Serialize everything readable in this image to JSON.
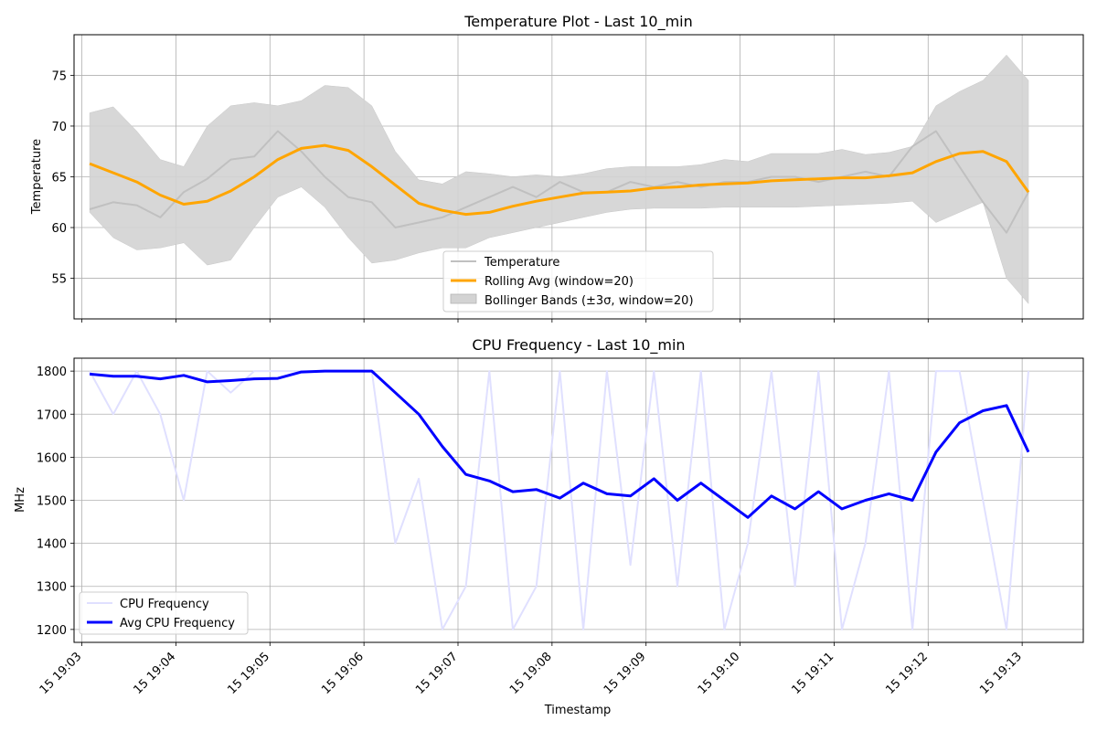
{
  "chart_data": [
    {
      "type": "line",
      "title": "Temperature Plot - Last 10_min",
      "xlabel": "",
      "ylabel": "Temperature",
      "ylim": [
        51,
        79
      ],
      "yticks": [
        55,
        60,
        65,
        70,
        75
      ],
      "grid": true,
      "legend_position": "lower center",
      "colors": {
        "temperature": "#c0c0c0",
        "rolling": "#ffa500",
        "band": "#d3d3d3"
      },
      "series": [
        {
          "name": "Temperature",
          "x": [
            "19:03:05",
            "19:03:20",
            "19:03:35",
            "19:03:50",
            "19:04:05",
            "19:04:20",
            "19:04:35",
            "19:04:50",
            "19:05:05",
            "19:05:20",
            "19:05:35",
            "19:05:50",
            "19:06:05",
            "19:06:20",
            "19:06:35",
            "19:06:50",
            "19:07:05",
            "19:07:20",
            "19:07:35",
            "19:07:50",
            "19:08:05",
            "19:08:20",
            "19:08:35",
            "19:08:50",
            "19:09:05",
            "19:09:20",
            "19:09:35",
            "19:09:50",
            "19:10:05",
            "19:10:20",
            "19:10:35",
            "19:10:50",
            "19:11:05",
            "19:11:20",
            "19:11:35",
            "19:11:50",
            "19:12:05",
            "19:12:20",
            "19:12:35",
            "19:12:50",
            "19:13:04"
          ],
          "values": [
            61.8,
            62.5,
            62.2,
            61.0,
            63.5,
            64.8,
            66.7,
            67.0,
            69.5,
            67.5,
            65.0,
            63.0,
            62.5,
            60.0,
            60.5,
            61.0,
            62.0,
            63.0,
            64.0,
            63.0,
            64.5,
            63.5,
            63.5,
            64.5,
            64.0,
            64.5,
            64.0,
            64.5,
            64.5,
            65.0,
            65.0,
            64.5,
            65.0,
            65.5,
            65.0,
            68.0,
            69.5,
            66.0,
            62.5,
            59.5,
            63.5
          ]
        },
        {
          "name": "Rolling Avg (window=20)",
          "x": [
            "19:03:05",
            "19:03:20",
            "19:03:35",
            "19:03:50",
            "19:04:05",
            "19:04:20",
            "19:04:35",
            "19:04:50",
            "19:05:05",
            "19:05:20",
            "19:05:35",
            "19:05:50",
            "19:06:05",
            "19:06:20",
            "19:06:35",
            "19:06:50",
            "19:07:05",
            "19:07:20",
            "19:07:35",
            "19:07:50",
            "19:08:05",
            "19:08:20",
            "19:08:35",
            "19:08:50",
            "19:09:05",
            "19:09:20",
            "19:09:35",
            "19:09:50",
            "19:10:05",
            "19:10:20",
            "19:10:35",
            "19:10:50",
            "19:11:05",
            "19:11:20",
            "19:11:35",
            "19:11:50",
            "19:12:05",
            "19:12:20",
            "19:12:35",
            "19:12:50",
            "19:13:04"
          ],
          "values": [
            66.3,
            65.4,
            64.5,
            63.2,
            62.3,
            62.6,
            63.6,
            65.0,
            66.7,
            67.8,
            68.1,
            67.6,
            66.0,
            64.2,
            62.4,
            61.7,
            61.3,
            61.5,
            62.1,
            62.6,
            63.0,
            63.4,
            63.5,
            63.6,
            63.9,
            64.0,
            64.2,
            64.3,
            64.4,
            64.6,
            64.7,
            64.8,
            64.9,
            64.9,
            65.1,
            65.4,
            66.5,
            67.3,
            67.5,
            66.5,
            63.5
          ]
        },
        {
          "name": "Bollinger Bands (±3σ, window=20)",
          "x": [
            "19:03:05",
            "19:03:20",
            "19:03:35",
            "19:03:50",
            "19:04:05",
            "19:04:20",
            "19:04:35",
            "19:04:50",
            "19:05:05",
            "19:05:20",
            "19:05:35",
            "19:05:50",
            "19:06:05",
            "19:06:20",
            "19:06:35",
            "19:06:50",
            "19:07:05",
            "19:07:20",
            "19:07:35",
            "19:07:50",
            "19:08:05",
            "19:08:20",
            "19:08:35",
            "19:08:50",
            "19:09:05",
            "19:09:20",
            "19:09:35",
            "19:09:50",
            "19:10:05",
            "19:10:20",
            "19:10:35",
            "19:10:50",
            "19:11:05",
            "19:11:20",
            "19:11:35",
            "19:11:50",
            "19:12:05",
            "19:12:20",
            "19:12:35",
            "19:12:50",
            "19:13:04"
          ],
          "upper": [
            71.3,
            71.9,
            69.5,
            66.7,
            66.0,
            70.0,
            72.0,
            72.3,
            72.0,
            72.5,
            74.0,
            73.8,
            72.0,
            67.5,
            64.7,
            64.3,
            65.5,
            65.3,
            65.0,
            65.2,
            65.0,
            65.3,
            65.8,
            66.0,
            66.0,
            66.0,
            66.2,
            66.7,
            66.5,
            67.3,
            67.3,
            67.3,
            67.7,
            67.2,
            67.4,
            68.0,
            72.0,
            73.4,
            74.5,
            77.0,
            74.5
          ],
          "lower": [
            61.5,
            59.0,
            57.8,
            58.0,
            58.5,
            56.3,
            56.8,
            60.0,
            63.0,
            64.0,
            62.0,
            59.0,
            56.5,
            56.8,
            57.5,
            58.0,
            58.0,
            59.0,
            59.5,
            60.0,
            60.5,
            61.0,
            61.5,
            61.8,
            61.9,
            61.9,
            61.9,
            62.0,
            62.0,
            62.0,
            62.0,
            62.1,
            62.2,
            62.3,
            62.4,
            62.6,
            60.5,
            61.5,
            62.5,
            55.0,
            52.5
          ]
        }
      ]
    },
    {
      "type": "line",
      "title": "CPU Frequency - Last 10_min",
      "xlabel": "Timestamp",
      "ylabel": "MHz",
      "ylim": [
        1170,
        1830
      ],
      "yticks": [
        1200,
        1300,
        1400,
        1500,
        1600,
        1700,
        1800
      ],
      "grid": true,
      "legend_position": "lower left",
      "colors": {
        "cpu": "#e0e0ff",
        "avg": "#0000ff"
      },
      "x_tick_labels": [
        "15 19:03",
        "15 19:04",
        "15 19:05",
        "15 19:06",
        "15 19:07",
        "15 19:08",
        "15 19:09",
        "15 19:10",
        "15 19:11",
        "15 19:12",
        "15 19:13"
      ],
      "series": [
        {
          "name": "CPU Frequency",
          "x": [
            "19:03:05",
            "19:03:20",
            "19:03:35",
            "19:03:50",
            "19:04:05",
            "19:04:20",
            "19:04:35",
            "19:04:50",
            "19:05:05",
            "19:05:20",
            "19:05:35",
            "19:05:50",
            "19:06:05",
            "19:06:20",
            "19:06:35",
            "19:06:50",
            "19:07:05",
            "19:07:20",
            "19:07:35",
            "19:07:50",
            "19:08:05",
            "19:08:20",
            "19:08:35",
            "19:08:50",
            "19:09:05",
            "19:09:20",
            "19:09:35",
            "19:09:50",
            "19:10:05",
            "19:10:20",
            "19:10:35",
            "19:10:50",
            "19:11:05",
            "19:11:20",
            "19:11:35",
            "19:11:50",
            "19:12:05",
            "19:12:20",
            "19:12:35",
            "19:12:50",
            "19:13:04"
          ],
          "values": [
            1800,
            1700,
            1800,
            1700,
            1500,
            1800,
            1750,
            1800,
            1800,
            1800,
            1800,
            1800,
            1800,
            1400,
            1550,
            1200,
            1300,
            1800,
            1200,
            1300,
            1800,
            1200,
            1800,
            1350,
            1800,
            1300,
            1800,
            1200,
            1400,
            1800,
            1300,
            1800,
            1200,
            1400,
            1800,
            1200,
            1800,
            1800,
            1500,
            1200,
            1800
          ]
        },
        {
          "name": "Avg CPU Frequency",
          "x": [
            "19:03:05",
            "19:03:20",
            "19:03:35",
            "19:03:50",
            "19:04:05",
            "19:04:20",
            "19:04:35",
            "19:04:50",
            "19:05:05",
            "19:05:20",
            "19:05:35",
            "19:05:50",
            "19:06:05",
            "19:06:20",
            "19:06:35",
            "19:06:50",
            "19:07:05",
            "19:07:20",
            "19:07:35",
            "19:07:50",
            "19:08:05",
            "19:08:20",
            "19:08:35",
            "19:08:50",
            "19:09:05",
            "19:09:20",
            "19:09:35",
            "19:09:50",
            "19:10:05",
            "19:10:20",
            "19:10:35",
            "19:10:50",
            "19:11:05",
            "19:11:20",
            "19:11:35",
            "19:11:50",
            "19:12:05",
            "19:12:20",
            "19:12:35",
            "19:12:50",
            "19:13:04"
          ],
          "values": [
            1793,
            1788,
            1788,
            1782,
            1790,
            1775,
            1778,
            1782,
            1783,
            1798,
            1800,
            1800,
            1800,
            1750,
            1700,
            1625,
            1560,
            1545,
            1520,
            1525,
            1505,
            1540,
            1515,
            1510,
            1550,
            1500,
            1540,
            1500,
            1460,
            1510,
            1480,
            1520,
            1480,
            1500,
            1515,
            1500,
            1612,
            1680,
            1708,
            1720,
            1612
          ]
        }
      ]
    }
  ]
}
